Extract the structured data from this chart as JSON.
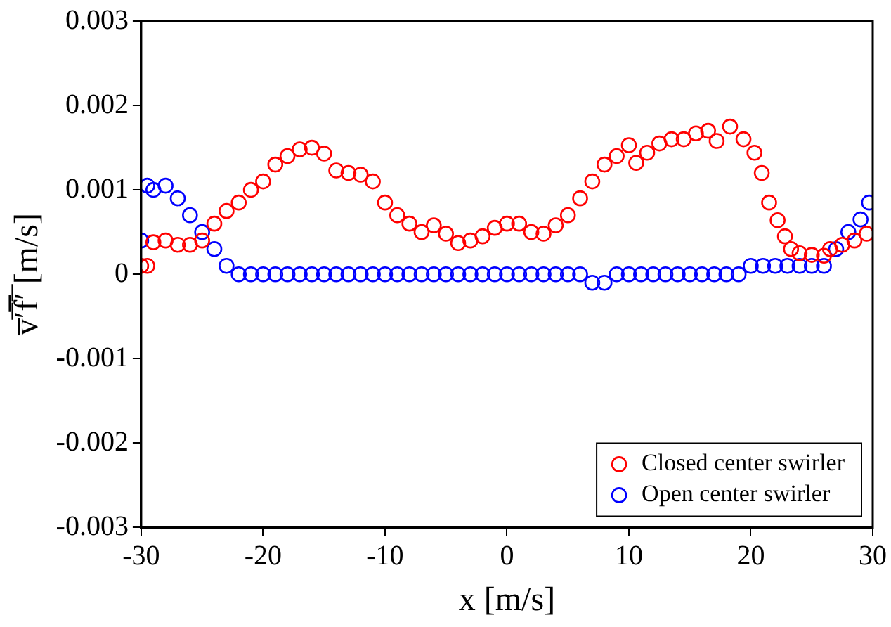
{
  "chart_data": {
    "type": "scatter",
    "xlabel": "x [m/s]",
    "ylabel": "v̅′̅f̅′̅ [m/s]",
    "xlim": [
      -30,
      30
    ],
    "xticks": [
      -30,
      -20,
      -10,
      0,
      10,
      20,
      30
    ],
    "ylim": [
      -0.003,
      0.003
    ],
    "yticks": [
      -0.003,
      -0.002,
      -0.001,
      0,
      0.001,
      0.002,
      0.003
    ],
    "grid": false,
    "legend": "bottom right",
    "marker": "circle",
    "series": [
      {
        "name": "Closed center swirler",
        "color": "#ff0000",
        "x": [
          -30,
          -29.5,
          -29,
          -28,
          -27,
          -26,
          -25,
          -24,
          -23,
          -22,
          -21,
          -20,
          -19,
          -18,
          -17,
          -16,
          -15,
          -14,
          -13,
          -12,
          -11,
          -10,
          -9,
          -8,
          -7,
          -6,
          -5,
          -4,
          -3,
          -2,
          -1,
          0,
          1,
          2,
          3,
          4,
          5,
          6,
          7,
          8,
          9,
          10,
          10.6,
          11.5,
          12.5,
          13.5,
          14.5,
          15.5,
          16.5,
          17.2,
          18.3,
          19.4,
          20.3,
          20.9,
          21.5,
          22.2,
          22.8,
          23.3,
          24,
          25,
          26,
          26.5,
          27.5,
          28.5,
          29.5
        ],
        "values": [
          0.0001,
          0.0001,
          0.00038,
          0.0004,
          0.00035,
          0.00035,
          0.0004,
          0.0006,
          0.00075,
          0.00085,
          0.001,
          0.0011,
          0.0013,
          0.0014,
          0.00148,
          0.0015,
          0.00143,
          0.00123,
          0.0012,
          0.00118,
          0.0011,
          0.00085,
          0.0007,
          0.0006,
          0.0005,
          0.00058,
          0.00048,
          0.00037,
          0.0004,
          0.00045,
          0.00055,
          0.0006,
          0.0006,
          0.0005,
          0.00048,
          0.00058,
          0.0007,
          0.0009,
          0.0011,
          0.0013,
          0.0014,
          0.00153,
          0.00132,
          0.00144,
          0.00155,
          0.0016,
          0.0016,
          0.00167,
          0.0017,
          0.00158,
          0.00175,
          0.0016,
          0.00144,
          0.0012,
          0.00085,
          0.00064,
          0.00045,
          0.0003,
          0.00025,
          0.00023,
          0.00022,
          0.0003,
          0.00035,
          0.0004,
          0.00048
        ]
      },
      {
        "name": "Open center swirler",
        "color": "#0000ff",
        "x": [
          -30,
          -29.5,
          -29,
          -28,
          -27,
          -26,
          -25,
          -24,
          -23,
          -22,
          -21,
          -20,
          -19,
          -18,
          -17,
          -16,
          -15,
          -14,
          -13,
          -12,
          -11,
          -10,
          -9,
          -8,
          -7,
          -6,
          -5,
          -4,
          -3,
          -2,
          -1,
          0,
          1,
          2,
          3,
          4,
          5,
          6,
          7,
          8,
          9,
          10,
          11,
          12,
          13,
          14,
          15,
          16,
          17,
          18,
          19,
          20,
          21,
          22,
          23,
          24,
          25,
          26,
          27,
          28,
          29,
          29.7
        ],
        "values": [
          0.0004,
          0.00105,
          0.001,
          0.00105,
          0.0009,
          0.0007,
          0.0005,
          0.0003,
          0.0001,
          0,
          0,
          0,
          0,
          0,
          0,
          0,
          0,
          0,
          0,
          0,
          0,
          0,
          0,
          0,
          0,
          0,
          0,
          0,
          0,
          0,
          0,
          0,
          0,
          0,
          0,
          0,
          0,
          0,
          -0.0001,
          -0.0001,
          0,
          0,
          0,
          0,
          0,
          0,
          0,
          0,
          0,
          0,
          0,
          0.0001,
          0.0001,
          0.0001,
          0.0001,
          0.0001,
          0.0001,
          0.0001,
          0.0003,
          0.0005,
          0.00065,
          0.00085
        ]
      }
    ]
  }
}
